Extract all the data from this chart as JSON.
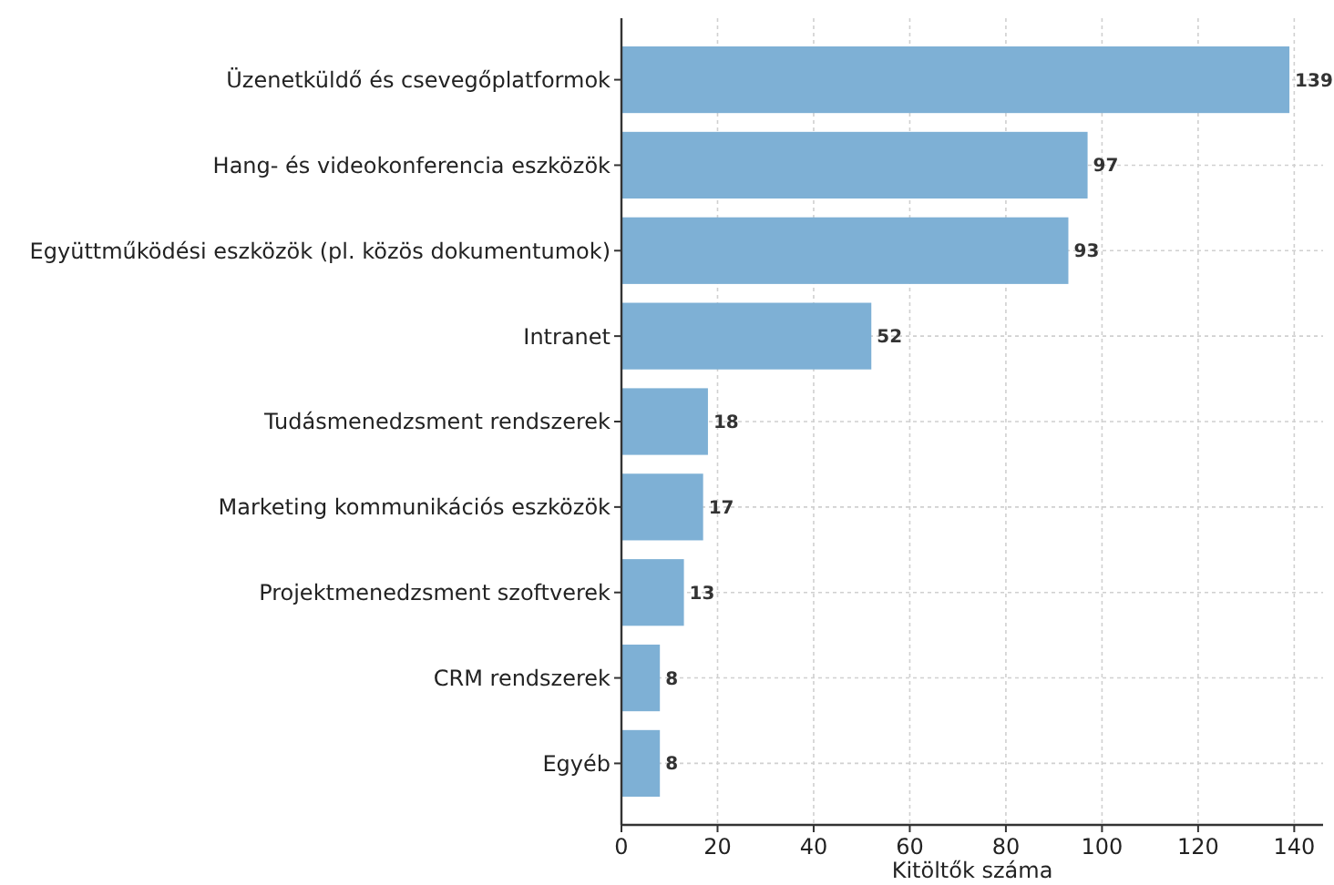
{
  "chart_data": {
    "type": "bar",
    "orientation": "horizontal",
    "xlabel": "Kitöltők száma",
    "categories": [
      "Üzenetküldő és csevegőplatformok",
      "Hang- és videokonferencia eszközök",
      "Együttműködési eszközök (pl. közös dokumentumok)",
      "Intranet",
      "Tudásmenedzsment rendszerek",
      "Marketing kommunikációs eszközök",
      "Projektmenedzsment szoftverek",
      "CRM rendszerek",
      "Egyéb"
    ],
    "values": [
      139,
      97,
      93,
      52,
      18,
      17,
      13,
      8,
      8
    ],
    "color": "#7eb0d5",
    "xlim": [
      0,
      146
    ],
    "xticks": [
      0,
      20,
      40,
      60,
      80,
      100,
      120,
      140
    ],
    "grid": true,
    "data_labels": true
  }
}
